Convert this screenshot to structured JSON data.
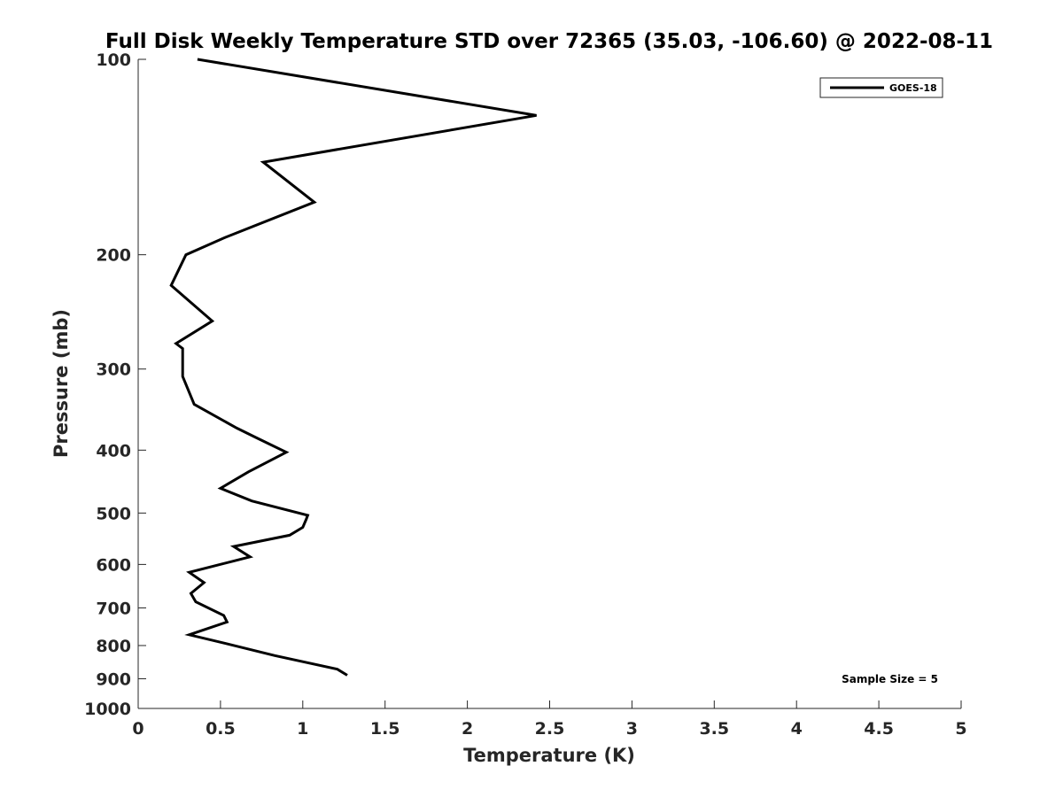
{
  "chart_data": {
    "type": "line",
    "title": "Full Disk Weekly Temperature STD over 72365 (35.03, -106.60) @ 2022-08-11",
    "xlabel": "Temperature (K)",
    "ylabel": "Pressure (mb)",
    "xlim": [
      0,
      5
    ],
    "ylim": [
      1000,
      100
    ],
    "yscale": "log",
    "y_reversed": true,
    "x_ticks": [
      0,
      0.5,
      1,
      1.5,
      2,
      2.5,
      3,
      3.5,
      4,
      4.5,
      5
    ],
    "x_tick_labels": [
      "0",
      "0.5",
      "1",
      "1.5",
      "2",
      "2.5",
      "3",
      "3.5",
      "4",
      "4.5",
      "5"
    ],
    "y_ticks": [
      100,
      200,
      300,
      400,
      500,
      600,
      700,
      800,
      900,
      1000
    ],
    "y_tick_labels": [
      "100",
      "200",
      "300",
      "400",
      "500",
      "600",
      "700",
      "800",
      "900",
      "1000"
    ],
    "grid": false,
    "legend_position": "top-right",
    "annotation": "Sample Size = 5",
    "series": [
      {
        "name": "GOES-18",
        "color": "#000000",
        "x": [
          0.36,
          2.42,
          0.76,
          1.07,
          0.53,
          0.29,
          0.2,
          0.45,
          0.23,
          0.27,
          0.27,
          0.34,
          0.6,
          0.72,
          0.9,
          0.67,
          0.5,
          0.69,
          1.03,
          1.02,
          1.0,
          0.92,
          0.58,
          0.68,
          0.31,
          0.4,
          0.32,
          0.35,
          0.52,
          0.54,
          0.31,
          0.53,
          0.83,
          1.21,
          1.27
        ],
        "y": [
          100,
          122,
          144,
          166,
          188,
          200,
          223,
          253,
          274,
          279,
          308,
          340,
          370,
          383,
          403,
          432,
          458,
          479,
          504,
          512,
          526,
          541,
          563,
          584,
          617,
          640,
          665,
          685,
          719,
          736,
          770,
          794,
          829,
          870,
          889
        ]
      }
    ]
  }
}
